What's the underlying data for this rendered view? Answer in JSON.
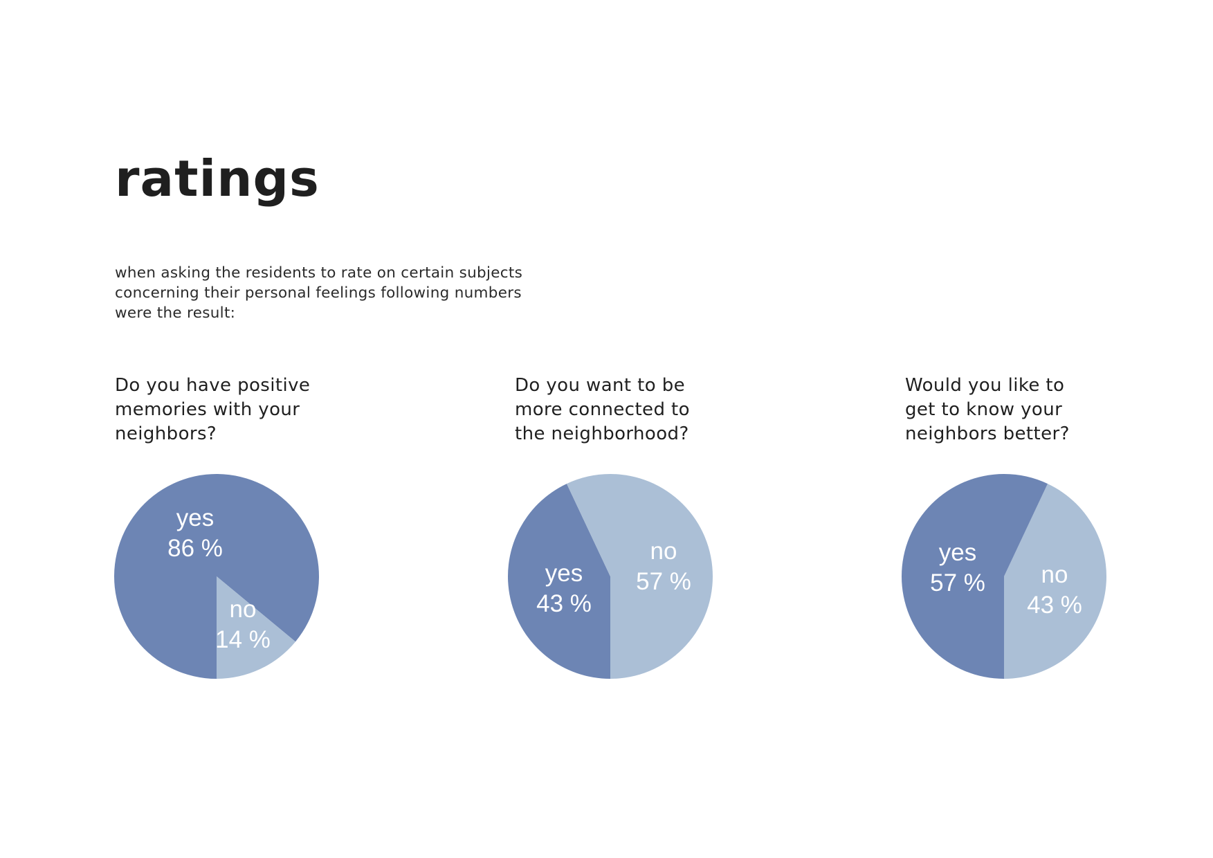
{
  "title": "ratings",
  "intro": [
    "when asking the residents to rate on certain subjects",
    "concerning their personal feelings following numbers",
    "were the result:"
  ],
  "colors": {
    "yes": "#6d85b4",
    "no": "#abbfd6",
    "label": "#ffffff"
  },
  "chart_data": [
    {
      "type": "pie",
      "title_lines": [
        "Do you have positive",
        "memories with your",
        "neighbors?"
      ],
      "slices": [
        {
          "label": "yes",
          "value": 86,
          "display": "86 %",
          "color": "#6d85b4"
        },
        {
          "label": "no",
          "value": 14,
          "display": "14 %",
          "color": "#abbfd6"
        }
      ]
    },
    {
      "type": "pie",
      "title_lines": [
        "Do you want to be",
        "more connected to",
        "the neighborhood?"
      ],
      "slices": [
        {
          "label": "yes",
          "value": 43,
          "display": "43 %",
          "color": "#6d85b4"
        },
        {
          "label": "no",
          "value": 57,
          "display": "57 %",
          "color": "#abbfd6"
        }
      ]
    },
    {
      "type": "pie",
      "title_lines": [
        "Would you like to",
        "get to know your",
        "neighbors better?"
      ],
      "slices": [
        {
          "label": "yes",
          "value": 57,
          "display": "57 %",
          "color": "#6d85b4"
        },
        {
          "label": "no",
          "value": 43,
          "display": "43 %",
          "color": "#abbfd6"
        }
      ]
    }
  ]
}
